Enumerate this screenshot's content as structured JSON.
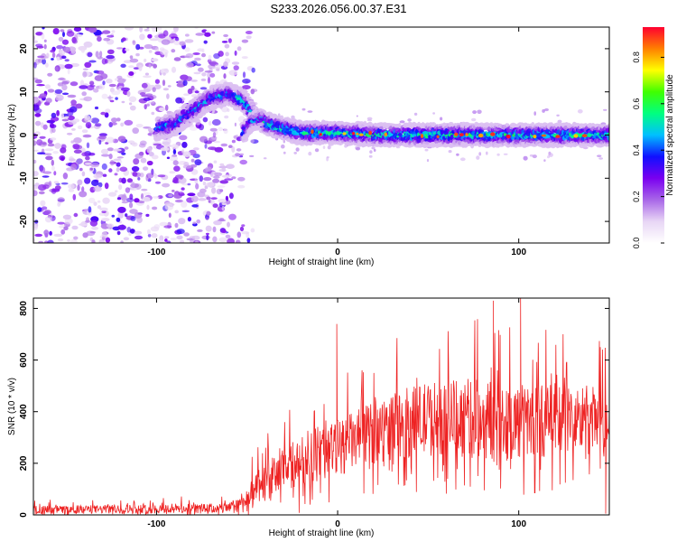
{
  "page": {
    "title": "S233.2026.056.00.37.E31"
  },
  "chart_data": [
    {
      "type": "heatmap",
      "title": "",
      "xlabel": "Height of straight line (km)",
      "ylabel": "Frequency (Hz)",
      "xlim": [
        -168,
        150
      ],
      "ylim": [
        -25,
        25
      ],
      "xticks": [
        -100,
        0,
        100
      ],
      "yticks": [
        -20,
        -10,
        0,
        10,
        20
      ],
      "colorbar": {
        "label": "Normalized spectral amplitude",
        "range": [
          0,
          0.93
        ],
        "ticks": [
          0.0,
          0.2,
          0.4,
          0.6,
          0.8
        ],
        "colormap": [
          "#ffffff",
          "#e8d6f5",
          "#a866e8",
          "#7a00f0",
          "#1010ff",
          "#00c0ff",
          "#00ff80",
          "#40ff00",
          "#ffff00",
          "#ff8000",
          "#ff0030"
        ]
      },
      "noise_region_x": [
        -168,
        -60
      ],
      "ridge": [
        {
          "x": -100,
          "f": 1.5
        },
        {
          "x": -90,
          "f": 2.5
        },
        {
          "x": -80,
          "f": 5.5
        },
        {
          "x": -70,
          "f": 8.5
        },
        {
          "x": -60,
          "f": 9.5
        },
        {
          "x": -52,
          "f": 8.0
        },
        {
          "x": -45,
          "f": 4.0
        },
        {
          "x": -38,
          "f": 2.5
        },
        {
          "x": -30,
          "f": 1.5
        },
        {
          "x": -20,
          "f": 0.5
        },
        {
          "x": -10,
          "f": 0.5
        },
        {
          "x": 0,
          "f": 0.5
        },
        {
          "x": 25,
          "f": 0.0
        },
        {
          "x": 50,
          "f": 0.0
        },
        {
          "x": 75,
          "f": 0.0
        },
        {
          "x": 100,
          "f": 0.0
        },
        {
          "x": 125,
          "f": 0.0
        },
        {
          "x": 150,
          "f": 0.0
        }
      ],
      "secondary_ridge": [
        {
          "x": -52,
          "f": 0.5
        },
        {
          "x": -48,
          "f": 3.0
        },
        {
          "x": -42,
          "f": 4.0
        }
      ],
      "peak_amplitude": 0.93
    },
    {
      "type": "line",
      "title": "",
      "xlabel": "Height of straight line (km)",
      "ylabel": "SNR (10 * v/v)",
      "xlim": [
        -168,
        150
      ],
      "ylim": [
        0,
        840
      ],
      "xticks": [
        -100,
        0,
        100
      ],
      "yticks": [
        0,
        200,
        400,
        600,
        800
      ],
      "series": [
        {
          "color": "#ee2222",
          "envelope": [
            {
              "x": -168,
              "base": 20,
              "spread": 15
            },
            {
              "x": -60,
              "base": 25,
              "spread": 20
            },
            {
              "x": -50,
              "base": 60,
              "spread": 50
            },
            {
              "x": -40,
              "base": 120,
              "spread": 80
            },
            {
              "x": -30,
              "base": 170,
              "spread": 90
            },
            {
              "x": -20,
              "base": 210,
              "spread": 100
            },
            {
              "x": -10,
              "base": 240,
              "spread": 110
            },
            {
              "x": 0,
              "base": 260,
              "spread": 110
            },
            {
              "x": 20,
              "base": 320,
              "spread": 120
            },
            {
              "x": 40,
              "base": 360,
              "spread": 140
            },
            {
              "x": 60,
              "base": 380,
              "spread": 150
            },
            {
              "x": 80,
              "base": 370,
              "spread": 160
            },
            {
              "x": 100,
              "base": 360,
              "spread": 150
            },
            {
              "x": 120,
              "base": 370,
              "spread": 140
            },
            {
              "x": 150,
              "base": 360,
              "spread": 140
            }
          ],
          "spikes": [
            {
              "x": -0.5,
              "y": 740
            },
            {
              "x": 86,
              "y": 830
            },
            {
              "x": 101,
              "y": 840
            },
            {
              "x": 145,
              "y": 650
            },
            {
              "x": 148,
              "y": 5
            }
          ]
        }
      ]
    }
  ]
}
